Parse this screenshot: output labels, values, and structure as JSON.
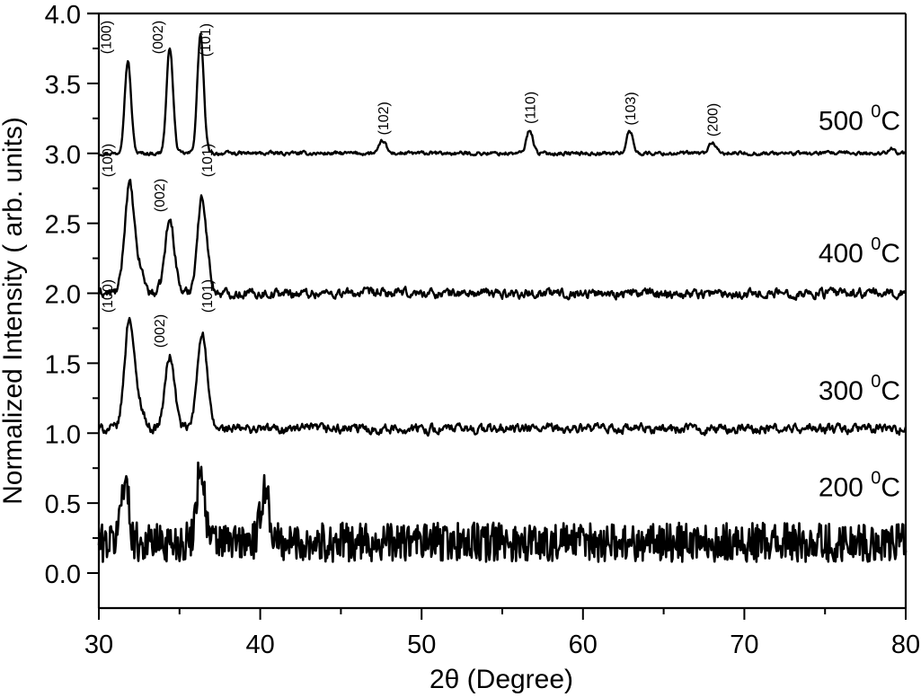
{
  "chart_data": {
    "type": "line",
    "title": "",
    "xlabel": "2θ (Degree)",
    "ylabel": "Normalized Intensity ( arb. units)",
    "xlim": [
      30,
      80
    ],
    "ylim": [
      -0.35,
      4.0
    ],
    "xticks": [
      30,
      40,
      50,
      60,
      70,
      80
    ],
    "yticks": [
      0.0,
      0.5,
      1.0,
      1.5,
      2.0,
      2.5,
      3.0,
      3.5,
      4.0
    ],
    "ytick_labels": [
      "0.0",
      "0.5",
      "1.0",
      "1.5",
      "2.0",
      "2.5",
      "3.0",
      "3.5",
      "4.0"
    ],
    "grid": false,
    "line_color": "#000000",
    "series": [
      {
        "name": "500 °C",
        "label_main": "500 ",
        "label_sup": "0",
        "label_unit": "C",
        "label_y": 3.17,
        "baseline": 3.0,
        "noise": 0.012,
        "width_scale": 0.28,
        "peaks": [
          {
            "x": 31.8,
            "height": 0.66,
            "hkl": "(100)"
          },
          {
            "x": 34.4,
            "height": 0.76,
            "hkl": "(002)"
          },
          {
            "x": 36.3,
            "height": 0.85,
            "hkl": "(101)"
          },
          {
            "x": 47.6,
            "height": 0.09,
            "hkl": "(102)"
          },
          {
            "x": 56.7,
            "height": 0.17,
            "hkl": "(110)"
          },
          {
            "x": 62.9,
            "height": 0.16,
            "hkl": "(103)"
          },
          {
            "x": 68.0,
            "height": 0.08,
            "hkl": "(200)"
          },
          {
            "x": 79.1,
            "height": 0.04,
            "hkl": ""
          }
        ]
      },
      {
        "name": "400 °C",
        "label_main": "400 ",
        "label_sup": "0",
        "label_unit": "C",
        "label_y": 2.22,
        "baseline": 2.0,
        "noise": 0.03,
        "width_scale": 0.42,
        "peaks": [
          {
            "x": 31.9,
            "height": 0.78,
            "hkl": "(100)"
          },
          {
            "x": 34.4,
            "height": 0.52,
            "hkl": "(002)"
          },
          {
            "x": 36.4,
            "height": 0.68,
            "hkl": "(101)"
          }
        ]
      },
      {
        "name": "300 °C",
        "label_main": "300 ",
        "label_sup": "0",
        "label_unit": "C",
        "label_y": 1.24,
        "baseline": 1.03,
        "noise": 0.03,
        "width_scale": 0.42,
        "peaks": [
          {
            "x": 31.9,
            "height": 0.8,
            "hkl": "(100)"
          },
          {
            "x": 34.4,
            "height": 0.52,
            "hkl": "(002)"
          },
          {
            "x": 36.4,
            "height": 0.7,
            "hkl": "(101)"
          }
        ]
      },
      {
        "name": "200 °C",
        "label_main": "200 ",
        "label_sup": "0",
        "label_unit": "C",
        "label_y": 0.55,
        "baseline": 0.22,
        "noise": 0.14,
        "width_scale": 0.35,
        "peaks": [
          {
            "x": 31.6,
            "height": 0.45,
            "hkl": ""
          },
          {
            "x": 36.3,
            "height": 0.55,
            "hkl": ""
          },
          {
            "x": 40.3,
            "height": 0.4,
            "hkl": ""
          }
        ]
      }
    ]
  }
}
